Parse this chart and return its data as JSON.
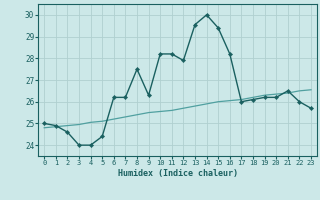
{
  "xlabel": "Humidex (Indice chaleur)",
  "ylabel": "",
  "bg_color": "#cce8e8",
  "grid_color": "#b0d0d0",
  "line_color": "#1a6060",
  "line2_color": "#50a0a0",
  "xlim": [
    -0.5,
    23.5
  ],
  "ylim": [
    23.5,
    30.5
  ],
  "yticks": [
    24,
    25,
    26,
    27,
    28,
    29,
    30
  ],
  "xticks": [
    0,
    1,
    2,
    3,
    4,
    5,
    6,
    7,
    8,
    9,
    10,
    11,
    12,
    13,
    14,
    15,
    16,
    17,
    18,
    19,
    20,
    21,
    22,
    23
  ],
  "line1_x": [
    0,
    1,
    2,
    3,
    4,
    5,
    6,
    7,
    8,
    9,
    10,
    11,
    12,
    13,
    14,
    15,
    16,
    17,
    18,
    19,
    20,
    21,
    22,
    23
  ],
  "line1_y": [
    25.0,
    24.9,
    24.6,
    24.0,
    24.0,
    24.4,
    26.2,
    26.2,
    27.5,
    26.3,
    28.2,
    28.2,
    27.9,
    29.55,
    30.0,
    29.4,
    28.2,
    26.0,
    26.1,
    26.2,
    26.2,
    26.5,
    26.0,
    25.7
  ],
  "line2_x": [
    0,
    1,
    2,
    3,
    4,
    5,
    6,
    7,
    8,
    9,
    10,
    11,
    12,
    13,
    14,
    15,
    16,
    17,
    18,
    19,
    20,
    21,
    22,
    23
  ],
  "line2_y": [
    24.8,
    24.85,
    24.9,
    24.95,
    25.05,
    25.1,
    25.2,
    25.3,
    25.4,
    25.5,
    25.55,
    25.6,
    25.7,
    25.8,
    25.9,
    26.0,
    26.05,
    26.1,
    26.2,
    26.3,
    26.35,
    26.4,
    26.5,
    26.55
  ]
}
